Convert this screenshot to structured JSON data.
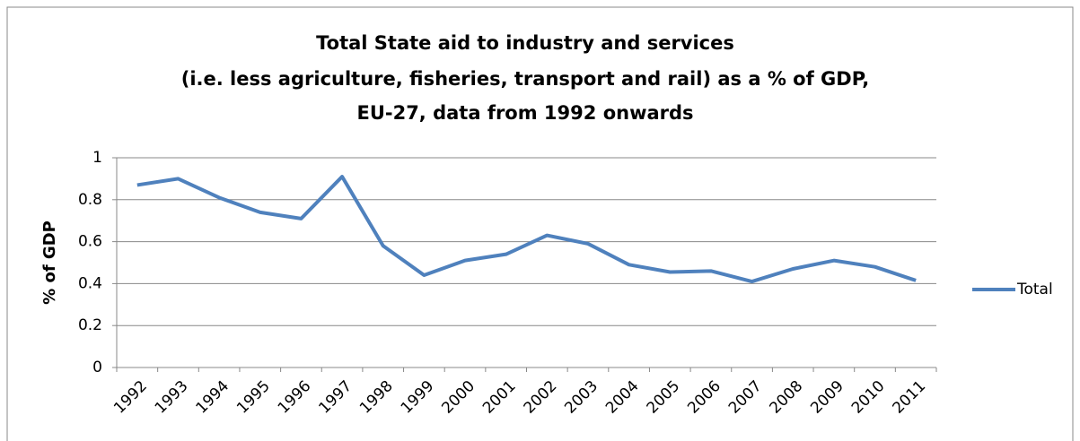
{
  "chart_data": {
    "type": "line",
    "title": [
      "Total State aid  to industry and services",
      "(i.e. less agriculture, fisheries, transport and rail) as a % of GDP,",
      "EU-27, data from 1992 onwards"
    ],
    "y_label": "% of GDP",
    "categories": [
      "1992",
      "1993",
      "1994",
      "1995",
      "1996",
      "1997",
      "1998",
      "1999",
      "2000",
      "2001",
      "2002",
      "2003",
      "2004",
      "2005",
      "2006",
      "2007",
      "2008",
      "2009",
      "2010",
      "2011"
    ],
    "series": [
      {
        "name": "Total",
        "color": "#4f81bd",
        "values": [
          0.87,
          0.9,
          0.81,
          0.74,
          0.71,
          0.91,
          0.58,
          0.44,
          0.51,
          0.54,
          0.63,
          0.59,
          0.49,
          0.455,
          0.46,
          0.41,
          0.47,
          0.51,
          0.48,
          0.415
        ]
      }
    ],
    "ylim": [
      0,
      1
    ],
    "yticks": [
      0,
      0.2,
      0.4,
      0.6,
      0.8,
      1
    ],
    "grid": true,
    "legend": "right"
  }
}
